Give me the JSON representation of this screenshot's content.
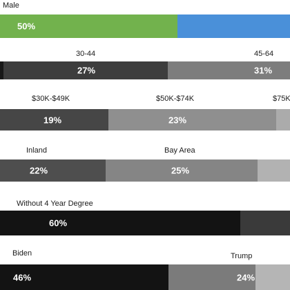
{
  "chart_data": {
    "type": "bar",
    "orientation": "horizontal-stacked",
    "rows": [
      {
        "segments": [
          {
            "label": "Male",
            "value": 50,
            "value_text": "50%",
            "color": "#72b24d"
          },
          {
            "label": "",
            "value": null,
            "value_text": "",
            "color": "#4a90d9"
          }
        ]
      },
      {
        "segments": [
          {
            "label": "",
            "value": null,
            "value_text": "",
            "color": "#181818"
          },
          {
            "label": "30-44",
            "value": 27,
            "value_text": "27%",
            "color": "#3d3d3d"
          },
          {
            "label": "45-64",
            "value": 31,
            "value_text": "31%",
            "color": "#7d7d7d"
          }
        ]
      },
      {
        "segments": [
          {
            "label": "$30K-$49K",
            "value": 19,
            "value_text": "19%",
            "color": "#464646"
          },
          {
            "label": "$50K-$74K",
            "value": 23,
            "value_text": "23%",
            "color": "#8f8f8f"
          },
          {
            "label": "$75K",
            "value": null,
            "value_text": "",
            "color": "#ababab"
          }
        ]
      },
      {
        "segments": [
          {
            "label": "Inland",
            "value": 22,
            "value_text": "22%",
            "color": "#4e4e4e"
          },
          {
            "label": "Bay Area",
            "value": 25,
            "value_text": "25%",
            "color": "#858585"
          },
          {
            "label": "",
            "value": null,
            "value_text": "",
            "color": "#b2b2b2"
          }
        ]
      },
      {
        "segments": [
          {
            "label": "Without 4 Year Degree",
            "value": 60,
            "value_text": "60%",
            "color": "#131313"
          },
          {
            "label": "",
            "value": null,
            "value_text": "",
            "color": "#3a3a3a"
          }
        ]
      },
      {
        "segments": [
          {
            "label": "Biden",
            "value": 46,
            "value_text": "46%",
            "color": "#131313"
          },
          {
            "label": "Trump",
            "value": 24,
            "value_text": "24%",
            "color": "#7b7b7b"
          },
          {
            "label": "",
            "value": null,
            "value_text": "",
            "color": "#b5b5b5"
          }
        ]
      }
    ]
  }
}
